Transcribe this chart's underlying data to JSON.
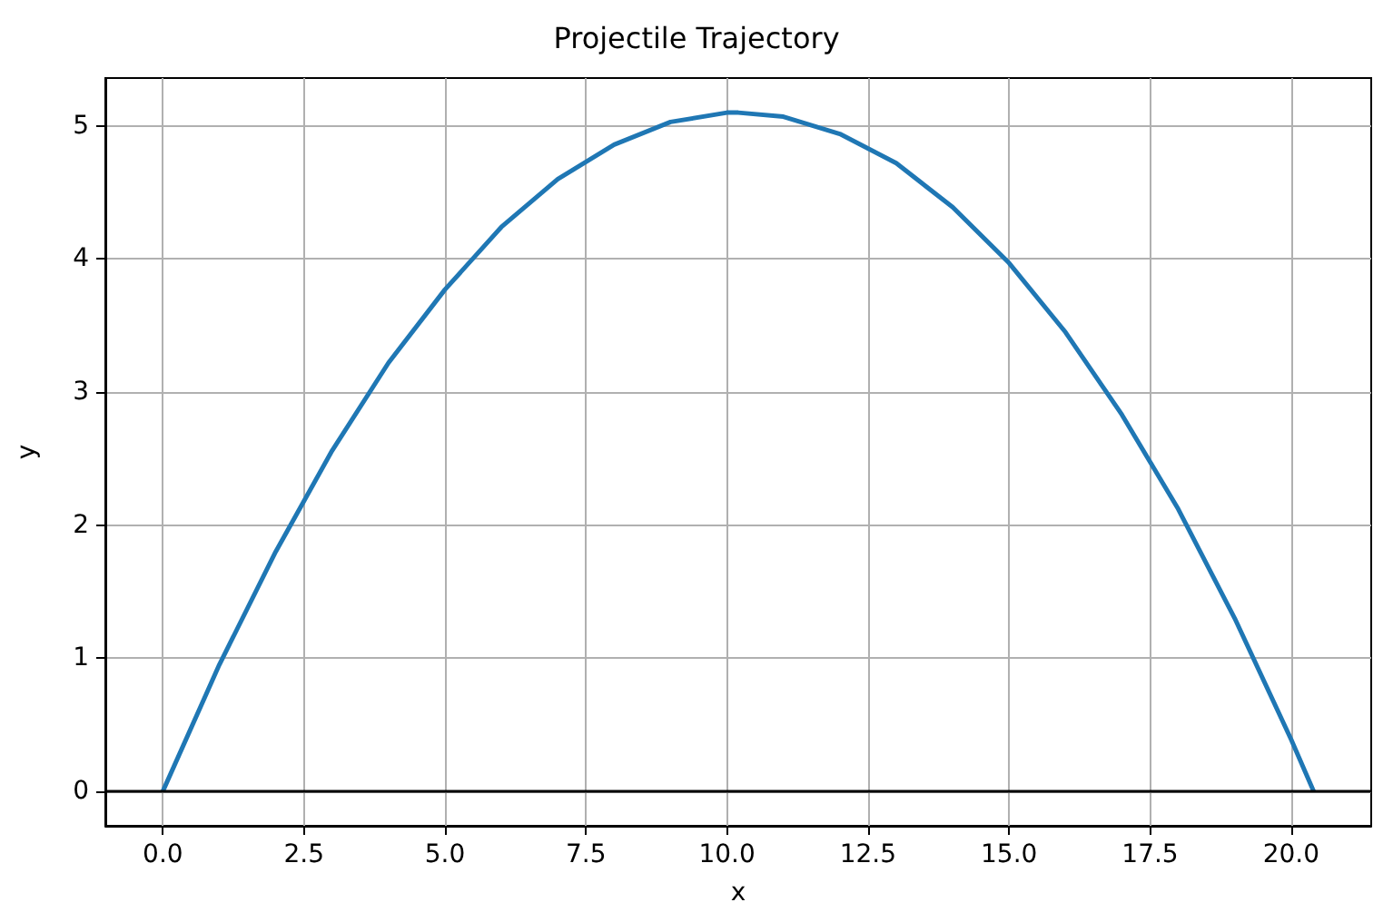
{
  "chart_data": {
    "type": "line",
    "title": "Projectile Trajectory",
    "xlabel": "x",
    "ylabel": "y",
    "series": [
      {
        "color": "#1f77b4",
        "x": [
          0,
          1,
          2,
          3,
          4,
          5,
          6,
          7,
          8,
          9,
          10,
          10.2,
          11,
          12,
          13,
          14,
          15,
          16,
          17,
          18,
          19,
          20,
          20.4
        ],
        "values": [
          0,
          0.95,
          1.8,
          2.56,
          3.22,
          3.77,
          4.24,
          4.6,
          4.86,
          5.03,
          5.1,
          5.1,
          5.07,
          4.94,
          4.72,
          4.39,
          3.97,
          3.45,
          2.83,
          2.12,
          1.3,
          0.39,
          0
        ]
      }
    ],
    "xlim": [
      -1.02,
      21.42
    ],
    "ylim": [
      -0.26,
      5.36
    ],
    "xticks": [
      {
        "value": 0,
        "label": "0.0"
      },
      {
        "value": 2.5,
        "label": "2.5"
      },
      {
        "value": 5,
        "label": "5.0"
      },
      {
        "value": 7.5,
        "label": "7.5"
      },
      {
        "value": 10,
        "label": "10.0"
      },
      {
        "value": 12.5,
        "label": "12.5"
      },
      {
        "value": 15,
        "label": "15.0"
      },
      {
        "value": 17.5,
        "label": "17.5"
      },
      {
        "value": 20,
        "label": "20.0"
      }
    ],
    "yticks": [
      0,
      1,
      2,
      3,
      4,
      5
    ],
    "ref_lines": [
      {
        "axis": "y",
        "value": 0,
        "color": "#000000"
      }
    ],
    "grid": true,
    "marker": "none",
    "line_style": "solid"
  }
}
